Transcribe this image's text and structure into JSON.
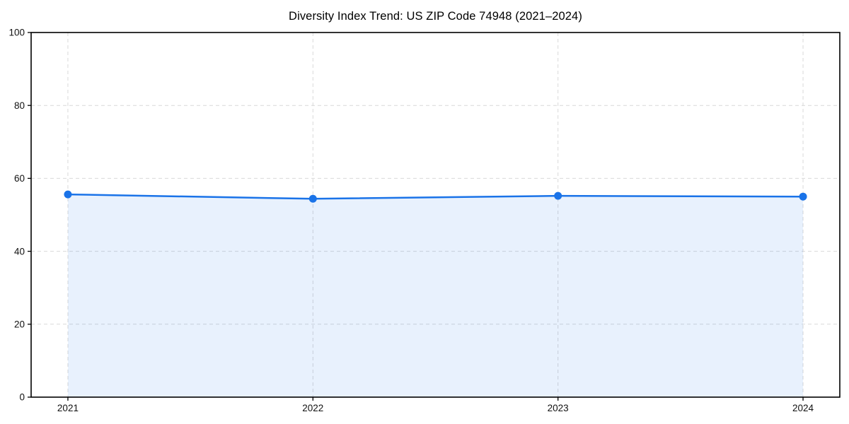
{
  "chart_data": {
    "type": "area",
    "title": "Diversity Index Trend: US ZIP Code 74948 (2021–2024)",
    "x": [
      2021,
      2022,
      2023,
      2024
    ],
    "series": [
      {
        "name": "Diversity Index",
        "values": [
          55.6,
          54.4,
          55.2,
          55.0
        ]
      }
    ],
    "xlabel": "",
    "ylabel": "",
    "xlim": [
      2020.85,
      2024.15
    ],
    "ylim": [
      0,
      100
    ],
    "yticks": [
      0,
      20,
      40,
      60,
      80,
      100
    ],
    "xticks": [
      2021,
      2022,
      2023,
      2024
    ],
    "grid": true,
    "grid_style": "dashed",
    "legend": "none",
    "marker": "circle",
    "colors": {
      "line": "#1a73e8",
      "marker": "#1a73e8",
      "fill": "rgba(26,115,232,0.10)",
      "grid": "#d9d9d9",
      "axis": "#000000",
      "tick_text": "#111111"
    }
  }
}
